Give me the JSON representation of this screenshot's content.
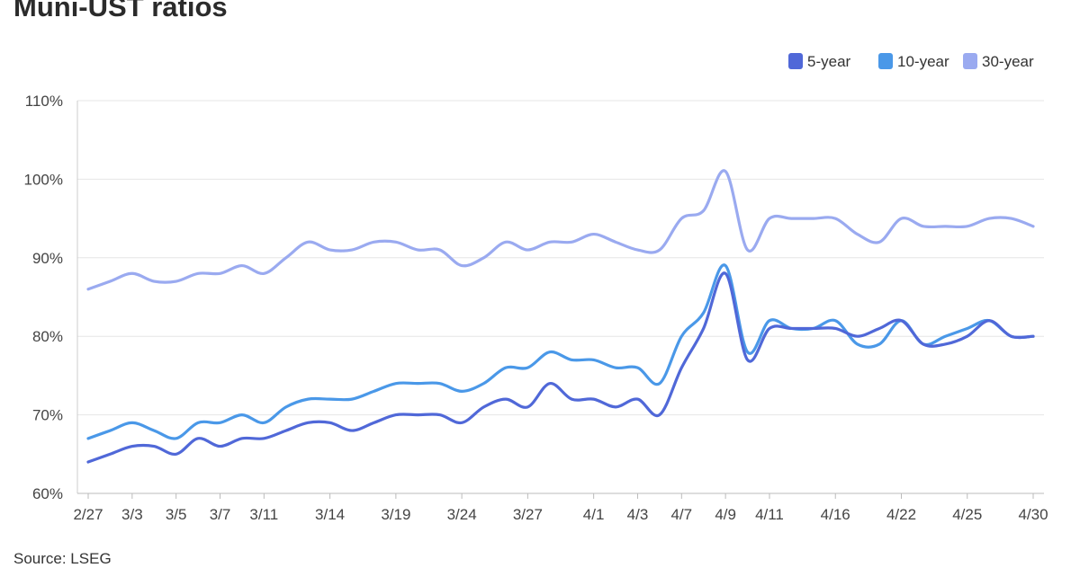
{
  "chart_data": {
    "type": "line",
    "title": "Muni-UST ratios",
    "source": "Source: LSEG",
    "xlabel": "",
    "ylabel": "",
    "ylim": [
      60,
      110
    ],
    "y_ticks": [
      "60%",
      "70%",
      "80%",
      "90%",
      "100%",
      "110%"
    ],
    "y_tick_values": [
      60,
      70,
      80,
      90,
      100,
      110
    ],
    "grid": "horizontal",
    "legend_position": "top-right",
    "categories": [
      "2/27",
      "2/28",
      "3/3",
      "3/4",
      "3/5",
      "3/6",
      "3/7",
      "3/10",
      "3/11",
      "3/12",
      "3/13",
      "3/14",
      "3/17",
      "3/18",
      "3/19",
      "3/20",
      "3/21",
      "3/24",
      "3/25",
      "3/26",
      "3/27",
      "3/28",
      "3/31",
      "4/1",
      "4/2",
      "4/3",
      "4/4",
      "4/7",
      "4/8",
      "4/9",
      "4/10",
      "4/11",
      "4/14",
      "4/15",
      "4/16",
      "4/17",
      "4/21",
      "4/22",
      "4/23",
      "4/24",
      "4/25",
      "4/28",
      "4/29",
      "4/30"
    ],
    "x_tick_labels": [
      "2/27",
      "3/3",
      "3/5",
      "3/7",
      "3/11",
      "3/14",
      "3/19",
      "3/24",
      "3/27",
      "4/1",
      "4/3",
      "4/7",
      "4/9",
      "4/11",
      "4/16",
      "4/22",
      "4/25",
      "4/30"
    ],
    "series": [
      {
        "name": "5-year",
        "color": "#5068d8",
        "values": [
          64,
          65,
          66,
          66,
          65,
          67,
          66,
          67,
          67,
          68,
          69,
          69,
          68,
          69,
          70,
          70,
          70,
          69,
          71,
          72,
          71,
          74,
          72,
          72,
          71,
          72,
          70,
          76,
          81,
          88,
          77,
          81,
          81,
          81,
          81,
          80,
          81,
          82,
          79,
          79,
          80,
          82,
          80,
          80
        ]
      },
      {
        "name": "10-year",
        "color": "#4a98e8",
        "values": [
          67,
          68,
          69,
          68,
          67,
          69,
          69,
          70,
          69,
          71,
          72,
          72,
          72,
          73,
          74,
          74,
          74,
          73,
          74,
          76,
          76,
          78,
          77,
          77,
          76,
          76,
          74,
          80,
          83,
          89,
          78,
          82,
          81,
          81,
          82,
          79,
          79,
          82,
          79,
          80,
          81,
          82,
          80,
          80
        ]
      },
      {
        "name": "30-year",
        "color": "#9aaaf0",
        "values": [
          86,
          87,
          88,
          87,
          87,
          88,
          88,
          89,
          88,
          90,
          92,
          91,
          91,
          92,
          92,
          91,
          91,
          89,
          90,
          92,
          91,
          92,
          92,
          93,
          92,
          91,
          91,
          95,
          96,
          101,
          91,
          95,
          95,
          95,
          95,
          93,
          92,
          95,
          94,
          94,
          94,
          95,
          95,
          94
        ]
      }
    ]
  }
}
